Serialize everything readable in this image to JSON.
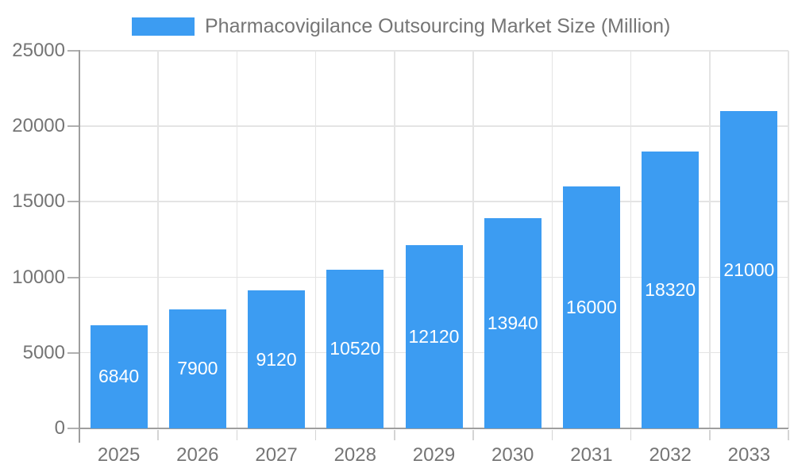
{
  "legend": {
    "label": "Pharmacovigilance Outsourcing Market Size (Million)"
  },
  "chart_data": {
    "type": "bar",
    "title": "Pharmacovigilance Outsourcing Market Size (Million)",
    "categories": [
      "2025",
      "2026",
      "2027",
      "2028",
      "2029",
      "2030",
      "2031",
      "2032",
      "2033"
    ],
    "values": [
      6840,
      7900,
      9120,
      10520,
      12120,
      13940,
      16000,
      18320,
      21000
    ],
    "bar_value_labels": [
      "6840",
      "7900",
      "9120",
      "10520",
      "12120",
      "13940",
      "16000",
      "18320",
      "21000"
    ],
    "xlabel": "",
    "ylabel": "",
    "ylim": [
      0,
      25000
    ],
    "yticks": [
      0,
      5000,
      10000,
      15000,
      20000,
      25000
    ],
    "ytick_labels": [
      "0",
      "5000",
      "10000",
      "15000",
      "20000",
      "25000"
    ],
    "grid": true,
    "legend_position": "top",
    "bar_labels_position": "centered-inside-bar",
    "colors": {
      "bar": "#3C9CF2",
      "bar_label": "#FFFFFF",
      "axis_text": "#757575",
      "title_text": "#757575",
      "grid_line": "#E4E4E4",
      "axis_line": "#9E9E9E",
      "y_tick": "#B0B0B0",
      "x_tick": "#D4D4D4",
      "background": "#FFFFFF"
    }
  }
}
